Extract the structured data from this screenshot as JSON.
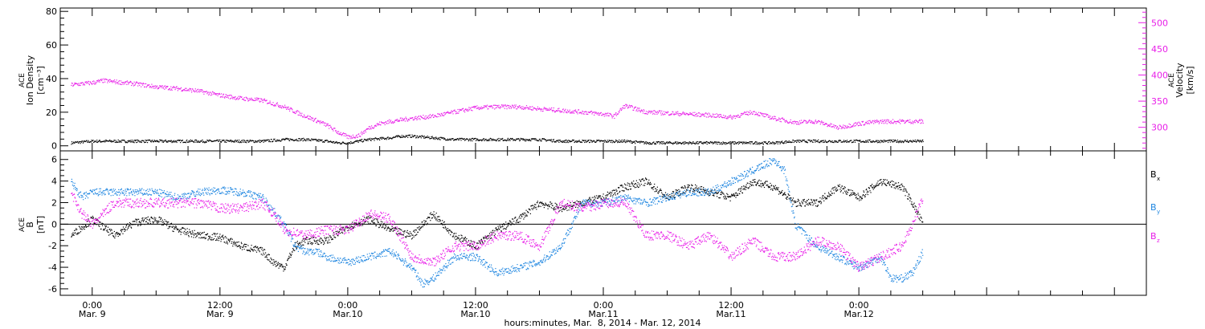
{
  "colors": {
    "axis": "#000000",
    "black_series": "#000000",
    "magenta_series": "#e81ee8",
    "blue_series": "#1f86e0"
  },
  "chart_data": [
    {
      "type": "scatter",
      "panel": "top",
      "ylabel_left": [
        "ACE",
        "Ion Density",
        "[cm⁻³]"
      ],
      "ylabel_right": [
        "ACE",
        "Velocity",
        "[km/s]"
      ],
      "ylim_left": [
        -3,
        82
      ],
      "ylim_right": [
        255,
        528
      ],
      "yticks_left": [
        0,
        20,
        40,
        60,
        80
      ],
      "yticks_right": [
        300,
        350,
        400,
        450,
        500
      ],
      "x_unit": "hours since Mar. 9 00:00",
      "series": [
        {
          "axis": "left",
          "color": "#000000",
          "x": [
            -2,
            0,
            4,
            8,
            12,
            16,
            18,
            20,
            22,
            23,
            24,
            25,
            26,
            28,
            29,
            30,
            32,
            34,
            36,
            38,
            40,
            42,
            44,
            46,
            48,
            50,
            52,
            54,
            56,
            58,
            60,
            62,
            64,
            66,
            68,
            70,
            72,
            74,
            76,
            78
          ],
          "y": [
            2,
            3,
            3,
            3,
            3,
            3,
            4,
            4,
            3,
            2,
            2,
            3,
            4,
            5,
            6,
            6,
            5,
            4,
            4,
            4,
            4,
            4,
            3,
            3,
            3,
            3,
            2,
            2,
            2,
            2,
            2,
            2,
            2,
            3,
            3,
            3,
            3,
            3,
            3,
            3
          ]
        },
        {
          "axis": "right",
          "color": "#e81ee8",
          "x": [
            -2,
            0,
            1,
            2,
            3,
            4,
            6,
            8,
            10,
            12,
            14,
            16,
            18,
            20,
            21,
            22,
            23,
            24,
            25,
            26,
            27,
            28,
            30,
            32,
            34,
            36,
            38,
            40,
            42,
            44,
            46,
            48,
            49,
            50,
            52,
            54,
            56,
            58,
            60,
            62,
            64,
            66,
            68,
            70,
            72,
            74,
            76,
            78
          ],
          "y": [
            382,
            386,
            390,
            388,
            386,
            384,
            378,
            375,
            370,
            362,
            356,
            352,
            340,
            322,
            314,
            305,
            292,
            282,
            285,
            300,
            308,
            312,
            318,
            322,
            330,
            338,
            340,
            340,
            336,
            333,
            330,
            326,
            322,
            342,
            330,
            328,
            326,
            324,
            320,
            330,
            318,
            310,
            312,
            300,
            308,
            312,
            312,
            312
          ]
        }
      ]
    },
    {
      "type": "scatter",
      "panel": "bottom",
      "ylabel_left": [
        "ACE",
        "B",
        "[nT]"
      ],
      "ylim": [
        -6.6,
        6.8
      ],
      "yticks": [
        -6,
        -4,
        -2,
        0,
        2,
        4,
        6
      ],
      "x_unit": "hours since Mar. 9 00:00",
      "series": [
        {
          "name": "B",
          "subscript": "x",
          "color": "#000000",
          "x": [
            -2,
            0,
            2,
            4,
            6,
            8,
            10,
            12,
            14,
            16,
            17,
            18,
            19,
            20,
            22,
            24,
            26,
            28,
            30,
            32,
            34,
            36,
            38,
            40,
            42,
            44,
            46,
            48,
            50,
            52,
            54,
            56,
            58,
            60,
            62,
            64,
            66,
            68,
            70,
            72,
            74,
            76,
            77,
            78
          ],
          "y": [
            -1,
            0.5,
            -1,
            0.2,
            0.5,
            -0.5,
            -1,
            -1.2,
            -2,
            -2.5,
            -3.5,
            -4,
            -2,
            -1.5,
            -1.5,
            -0.2,
            0.5,
            -0.5,
            -1,
            1,
            -1,
            -2,
            -0.5,
            0.5,
            2,
            1.5,
            2,
            2.5,
            3.5,
            4,
            2.5,
            3.5,
            3,
            2.5,
            4,
            3.5,
            2,
            2,
            3.5,
            2.5,
            4,
            3.5,
            2,
            0
          ]
        },
        {
          "name": "B",
          "subscript": "y",
          "color": "#1f86e0",
          "x": [
            -2,
            -1,
            0,
            2,
            4,
            6,
            8,
            10,
            12,
            14,
            16,
            18,
            19,
            20,
            21,
            22,
            24,
            26,
            28,
            30,
            31,
            32,
            34,
            36,
            38,
            40,
            42,
            44,
            46,
            48,
            50,
            52,
            54,
            56,
            58,
            60,
            62,
            64,
            65,
            66,
            68,
            70,
            72,
            74,
            75,
            76,
            77,
            78
          ],
          "y": [
            4,
            2.5,
            3,
            3,
            3,
            3,
            2.5,
            3,
            3.2,
            3,
            2.5,
            0,
            -2,
            -2.5,
            -2.5,
            -3,
            -3.5,
            -3,
            -2.5,
            -4,
            -5.5,
            -5,
            -3,
            -3,
            -4.5,
            -4,
            -3.5,
            -2,
            2,
            2,
            2.5,
            2,
            2.5,
            3,
            3,
            4,
            5,
            6,
            5,
            0,
            -2,
            -3,
            -4,
            -3,
            -5,
            -5,
            -4.5,
            -2.5
          ]
        },
        {
          "name": "B",
          "subscript": "z",
          "color": "#e81ee8",
          "x": [
            -2,
            -1,
            0,
            2,
            4,
            6,
            8,
            10,
            12,
            14,
            16,
            17,
            18,
            20,
            22,
            24,
            26,
            28,
            30,
            32,
            34,
            36,
            38,
            40,
            42,
            44,
            46,
            48,
            50,
            52,
            54,
            56,
            58,
            60,
            62,
            64,
            66,
            68,
            70,
            72,
            74,
            76,
            77,
            78
          ],
          "y": [
            3,
            1,
            0,
            2,
            2,
            2,
            2,
            2,
            1.5,
            1.5,
            2,
            1,
            -0.5,
            -1,
            -0.5,
            -0.5,
            1,
            0.5,
            -3,
            -3.5,
            -2,
            -2,
            -1,
            -1,
            -2,
            2,
            1.5,
            2,
            2,
            -1,
            -1,
            -2,
            -1,
            -3,
            -1.5,
            -3,
            -3,
            -1.5,
            -2,
            -4,
            -3,
            -2,
            0,
            2.5
          ]
        }
      ]
    }
  ],
  "x_axis": {
    "xlim_hours": [
      -3,
      99
    ],
    "ticks": [
      {
        "h": 0,
        "time": "0:00",
        "date": "Mar. 9"
      },
      {
        "h": 12,
        "time": "12:00",
        "date": "Mar. 9"
      },
      {
        "h": 24,
        "time": "0:00",
        "date": "Mar.10"
      },
      {
        "h": 36,
        "time": "12:00",
        "date": "Mar.10"
      },
      {
        "h": 48,
        "time": "0:00",
        "date": "Mar.11"
      },
      {
        "h": 60,
        "time": "12:00",
        "date": "Mar.11"
      },
      {
        "h": 72,
        "time": "0:00",
        "date": "Mar.12"
      }
    ],
    "title": "hours:minutes, Mar.  8, 2014 - Mar. 12, 2014"
  }
}
